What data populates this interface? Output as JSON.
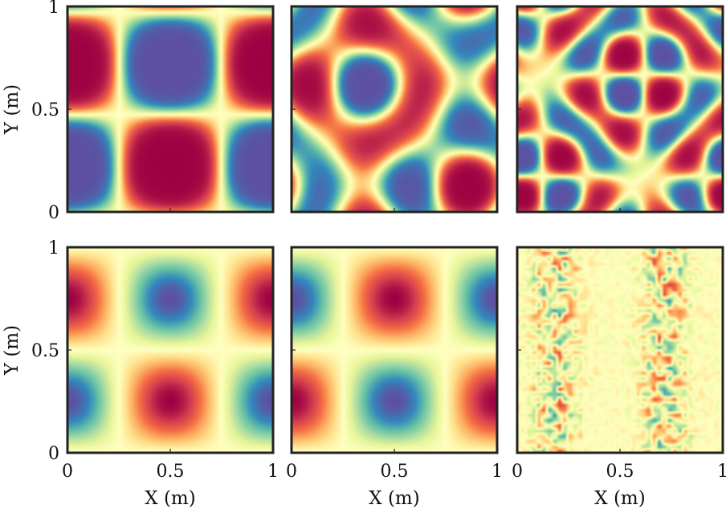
{
  "figure": {
    "xlabel": "X (m)",
    "ylabel": "Y (m)",
    "ticks": [
      "0",
      "0.5",
      "1"
    ]
  },
  "colormap": [
    "#5e4fa2",
    "#3288bd",
    "#66c2a5",
    "#abdda4",
    "#e6f598",
    "#ffffbf",
    "#fee08b",
    "#fdae61",
    "#f46d43",
    "#d53e4f",
    "#9e0142"
  ],
  "chart_data": [
    {
      "type": "heatmap",
      "row": 1,
      "col": 1,
      "field": "cos(2πx)·cos(πy) with sin(2π(x−0.25))·sin(2πy) cross bands",
      "xlim": [
        0,
        1
      ],
      "ylim": [
        0,
        1
      ],
      "x_tick_labels_shown": false,
      "y_tick_labels_shown": true
    },
    {
      "type": "heatmap",
      "row": 1,
      "col": 2,
      "field": "phase-shifted swirling pattern",
      "xlim": [
        0,
        1
      ],
      "ylim": [
        0,
        1
      ],
      "x_tick_labels_shown": false,
      "y_tick_labels_shown": false
    },
    {
      "type": "heatmap",
      "row": 1,
      "col": 3,
      "field": "higher-frequency swirling pattern",
      "xlim": [
        0,
        1
      ],
      "ylim": [
        0,
        1
      ],
      "x_tick_labels_shown": false,
      "y_tick_labels_shown": false
    },
    {
      "type": "heatmap",
      "row": 2,
      "col": 1,
      "field": "-sin(2πy)·cos(2π(x−0.5))-like cell pattern",
      "xlim": [
        0,
        1
      ],
      "ylim": [
        0,
        1
      ],
      "x_tick_labels_shown": true,
      "y_tick_labels_shown": true
    },
    {
      "type": "heatmap",
      "row": 2,
      "col": 2,
      "field": "cell pattern with opposite sign",
      "xlim": [
        0,
        1
      ],
      "ylim": [
        0,
        1
      ],
      "x_tick_labels_shown": true,
      "y_tick_labels_shown": false
    },
    {
      "type": "heatmap",
      "row": 2,
      "col": 3,
      "field": "small-amplitude noisy residual",
      "xlim": [
        0,
        1
      ],
      "ylim": [
        0,
        1
      ],
      "x_tick_labels_shown": true,
      "y_tick_labels_shown": false
    }
  ]
}
